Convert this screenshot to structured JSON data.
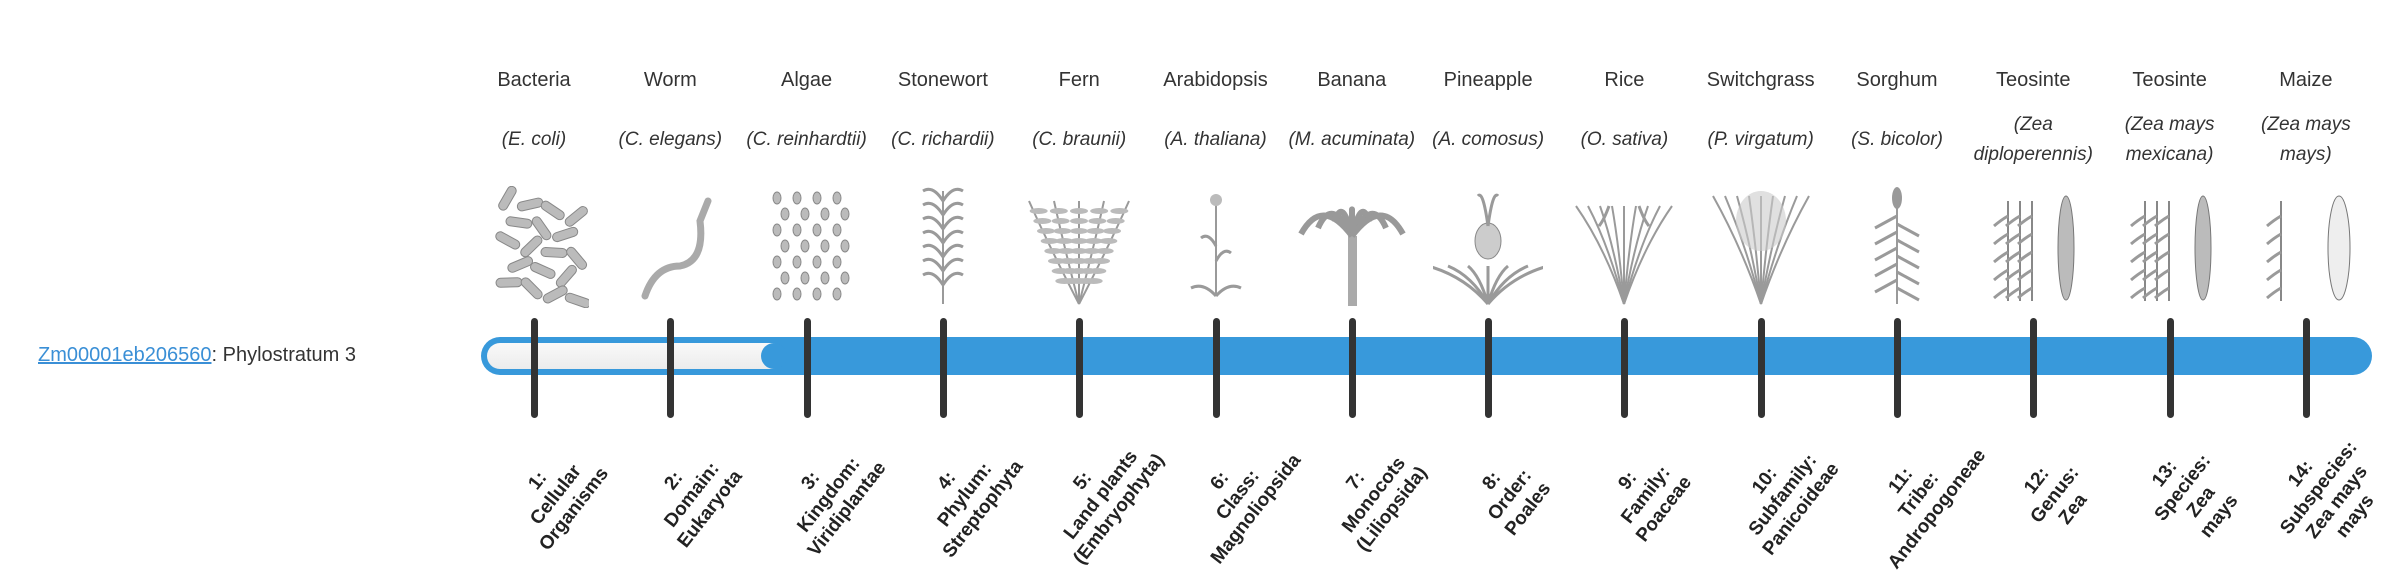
{
  "gene": {
    "id": "Zm00001eb206560",
    "separator": ":",
    "text": " Phylostratum 3"
  },
  "phylostratum": 3,
  "colors": {
    "bar": "#3899db",
    "link": "#3a8fd6",
    "tick": "#333333"
  },
  "strata": [
    {
      "common": "Bacteria",
      "species": "(E. coli)",
      "icon": "bacteria",
      "label": [
        "1:",
        "Cellular",
        "Organisms"
      ]
    },
    {
      "common": "Worm",
      "species": "(C. elegans)",
      "icon": "worm",
      "label": [
        "2:",
        "Domain:",
        "Eukaryota"
      ]
    },
    {
      "common": "Algae",
      "species": "(C. reinhardtii)",
      "icon": "algae",
      "label": [
        "3:",
        "Kingdom:",
        "Viridiplantae"
      ]
    },
    {
      "common": "Stonewort",
      "species": "(C. richardii)",
      "icon": "stonewort",
      "label": [
        "4:",
        "Phylum:",
        "Streptophyta"
      ]
    },
    {
      "common": "Fern",
      "species": "(C. braunii)",
      "icon": "fern",
      "label": [
        "5:",
        "Land plants",
        "(Embryophyta)"
      ]
    },
    {
      "common": "Arabidopsis",
      "species": "(A. thaliana)",
      "icon": "arabidopsis",
      "label": [
        "6:",
        "Class:",
        "Magnoliopsida"
      ]
    },
    {
      "common": "Banana",
      "species": "(M. acuminata)",
      "icon": "banana",
      "label": [
        "7:",
        "Monocots",
        "(Liliopsida)"
      ]
    },
    {
      "common": "Pineapple",
      "species": "(A. comosus)",
      "icon": "pineapple",
      "label": [
        "8:",
        "Order:",
        "Poales"
      ]
    },
    {
      "common": "Rice",
      "species": "(O. sativa)",
      "icon": "rice",
      "label": [
        "9:",
        "Family:",
        "Poaceae"
      ]
    },
    {
      "common": "Switchgrass",
      "species": "(P. virgatum)",
      "icon": "switchgrass",
      "label": [
        "10:",
        "Subfamily:",
        "Panicoideae"
      ]
    },
    {
      "common": "Sorghum",
      "species": "(S. bicolor)",
      "icon": "sorghum",
      "label": [
        "11:",
        "Tribe:",
        "Andropogoneae"
      ]
    },
    {
      "common": "Teosinte",
      "species": "(Zea diploperennis)",
      "icon": "teosinte",
      "label": [
        "12:",
        "Genus:",
        "Zea"
      ]
    },
    {
      "common": "Teosinte",
      "species": "(Zea mays mexicana)",
      "icon": "teosinte",
      "label": [
        "13:",
        "Species:",
        "Zea",
        "mays"
      ]
    },
    {
      "common": "Maize",
      "species": "(Zea mays mays)",
      "icon": "maize",
      "label": [
        "14:",
        "Subspecies:",
        "Zea mays",
        "mays"
      ]
    }
  ]
}
